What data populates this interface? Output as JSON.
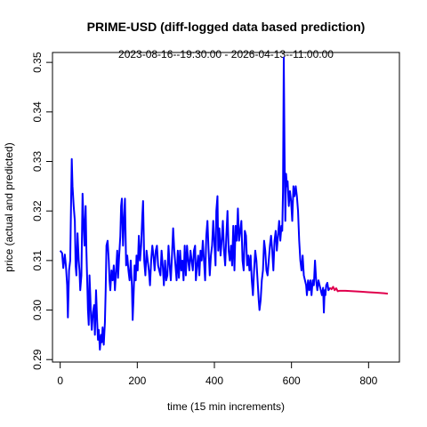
{
  "chart_data": {
    "type": "line",
    "title": "PRIME-USD (diff-logged data based prediction)",
    "subtitle": "2023-08-16--19:30:00  -  2026-04-13--11:00:00",
    "xlabel": "time (15 min increments)",
    "ylabel": "price (actual and predicted)",
    "xlim": [
      -20,
      880
    ],
    "ylim": [
      0.2895,
      0.352
    ],
    "x_ticks": [
      0,
      200,
      400,
      600,
      800
    ],
    "y_ticks": [
      0.29,
      0.3,
      0.31,
      0.32,
      0.33,
      0.34,
      0.35
    ],
    "x_tick_labels": [
      "0",
      "200",
      "400",
      "600",
      "800"
    ],
    "y_tick_labels": [
      "0.29",
      "0.30",
      "0.31",
      "0.32",
      "0.33",
      "0.34",
      "0.35"
    ],
    "grid": false,
    "series": [
      {
        "role": "actual",
        "color": "#0000ff",
        "points": [
          [
            0,
            0.312
          ],
          [
            5,
            0.3115
          ],
          [
            8,
            0.3085
          ],
          [
            12,
            0.3112
          ],
          [
            15,
            0.3088
          ],
          [
            18,
            0.305
          ],
          [
            20,
            0.2985
          ],
          [
            23,
            0.308
          ],
          [
            26,
            0.31
          ],
          [
            28,
            0.3205
          ],
          [
            30,
            0.3305
          ],
          [
            32,
            0.325
          ],
          [
            35,
            0.321
          ],
          [
            38,
            0.318
          ],
          [
            40,
            0.309
          ],
          [
            42,
            0.307
          ],
          [
            45,
            0.3155
          ],
          [
            48,
            0.31
          ],
          [
            50,
            0.308
          ],
          [
            52,
            0.304
          ],
          [
            55,
            0.307
          ],
          [
            58,
            0.3235
          ],
          [
            60,
            0.319
          ],
          [
            63,
            0.313
          ],
          [
            66,
            0.321
          ],
          [
            68,
            0.312
          ],
          [
            70,
            0.306
          ],
          [
            72,
            0.3
          ],
          [
            74,
            0.297
          ],
          [
            76,
            0.307
          ],
          [
            78,
            0.303
          ],
          [
            80,
            0.2985
          ],
          [
            82,
            0.296
          ],
          [
            85,
            0.2995
          ],
          [
            88,
            0.301
          ],
          [
            90,
            0.295
          ],
          [
            93,
            0.304
          ],
          [
            96,
            0.2975
          ],
          [
            98,
            0.294
          ],
          [
            100,
            0.296
          ],
          [
            103,
            0.292
          ],
          [
            106,
            0.295
          ],
          [
            108,
            0.2935
          ],
          [
            110,
            0.2965
          ],
          [
            113,
            0.293
          ],
          [
            116,
            0.2975
          ],
          [
            118,
            0.304
          ],
          [
            120,
            0.313
          ],
          [
            123,
            0.314
          ],
          [
            126,
            0.31
          ],
          [
            128,
            0.306
          ],
          [
            130,
            0.304
          ],
          [
            133,
            0.308
          ],
          [
            136,
            0.306
          ],
          [
            139,
            0.309
          ],
          [
            142,
            0.304
          ],
          [
            145,
            0.308
          ],
          [
            148,
            0.312
          ],
          [
            150,
            0.3065
          ],
          [
            153,
            0.311
          ],
          [
            156,
            0.315
          ],
          [
            158,
            0.321
          ],
          [
            160,
            0.3225
          ],
          [
            163,
            0.313
          ],
          [
            166,
            0.319
          ],
          [
            168,
            0.3225
          ],
          [
            171,
            0.309
          ],
          [
            174,
            0.311
          ],
          [
            177,
            0.308
          ],
          [
            180,
            0.306
          ],
          [
            183,
            0.31
          ],
          [
            186,
            0.305
          ],
          [
            188,
            0.298
          ],
          [
            190,
            0.302
          ],
          [
            193,
            0.309
          ],
          [
            196,
            0.306
          ],
          [
            198,
            0.311
          ],
          [
            201,
            0.308
          ],
          [
            204,
            0.315
          ],
          [
            207,
            0.31
          ],
          [
            210,
            0.313
          ],
          [
            213,
            0.319
          ],
          [
            215,
            0.322
          ],
          [
            218,
            0.31
          ],
          [
            221,
            0.307
          ],
          [
            224,
            0.312
          ],
          [
            227,
            0.31
          ],
          [
            230,
            0.308
          ],
          [
            233,
            0.305
          ],
          [
            236,
            0.31
          ],
          [
            239,
            0.313
          ],
          [
            242,
            0.311
          ],
          [
            245,
            0.308
          ],
          [
            248,
            0.312
          ],
          [
            251,
            0.313
          ],
          [
            254,
            0.309
          ],
          [
            257,
            0.308
          ],
          [
            260,
            0.307
          ],
          [
            263,
            0.312
          ],
          [
            266,
            0.309
          ],
          [
            269,
            0.305
          ],
          [
            272,
            0.31
          ],
          [
            275,
            0.306
          ],
          [
            278,
            0.307
          ],
          [
            281,
            0.313
          ],
          [
            284,
            0.309
          ],
          [
            287,
            0.306
          ],
          [
            290,
            0.311
          ],
          [
            293,
            0.3165
          ],
          [
            296,
            0.312
          ],
          [
            299,
            0.309
          ],
          [
            302,
            0.306
          ],
          [
            305,
            0.312
          ],
          [
            308,
            0.3065
          ],
          [
            311,
            0.312
          ],
          [
            314,
            0.308
          ],
          [
            317,
            0.31
          ],
          [
            320,
            0.306
          ],
          [
            323,
            0.313
          ],
          [
            326,
            0.307
          ],
          [
            329,
            0.313
          ],
          [
            332,
            0.31
          ],
          [
            335,
            0.308
          ],
          [
            338,
            0.312
          ],
          [
            341,
            0.31
          ],
          [
            344,
            0.308
          ],
          [
            347,
            0.312
          ],
          [
            350,
            0.313
          ],
          [
            352,
            0.306
          ],
          [
            355,
            0.309
          ],
          [
            358,
            0.311
          ],
          [
            361,
            0.307
          ],
          [
            364,
            0.312
          ],
          [
            367,
            0.31
          ],
          [
            370,
            0.314
          ],
          [
            373,
            0.31
          ],
          [
            376,
            0.306
          ],
          [
            379,
            0.315
          ],
          [
            382,
            0.318
          ],
          [
            385,
            0.312
          ],
          [
            388,
            0.307
          ],
          [
            391,
            0.311
          ],
          [
            394,
            0.313
          ],
          [
            397,
            0.318
          ],
          [
            400,
            0.3135
          ],
          [
            403,
            0.309
          ],
          [
            405,
            0.32
          ],
          [
            408,
            0.323
          ],
          [
            410,
            0.312
          ],
          [
            413,
            0.3165
          ],
          [
            416,
            0.311
          ],
          [
            419,
            0.314
          ],
          [
            422,
            0.318
          ],
          [
            425,
            0.312
          ],
          [
            428,
            0.309
          ],
          [
            431,
            0.315
          ],
          [
            434,
            0.32
          ],
          [
            437,
            0.312
          ],
          [
            440,
            0.31
          ],
          [
            443,
            0.313
          ],
          [
            446,
            0.309
          ],
          [
            449,
            0.317
          ],
          [
            452,
            0.308
          ],
          [
            455,
            0.317
          ],
          [
            458,
            0.314
          ],
          [
            461,
            0.3205
          ],
          [
            464,
            0.314
          ],
          [
            467,
            0.316
          ],
          [
            470,
            0.318
          ],
          [
            473,
            0.31
          ],
          [
            476,
            0.308
          ],
          [
            479,
            0.316
          ],
          [
            482,
            0.315
          ],
          [
            485,
            0.309
          ],
          [
            488,
            0.311
          ],
          [
            491,
            0.308
          ],
          [
            494,
            0.311
          ],
          [
            497,
            0.306
          ],
          [
            500,
            0.303
          ],
          [
            503,
            0.308
          ],
          [
            506,
            0.312
          ],
          [
            509,
            0.31
          ],
          [
            512,
            0.306
          ],
          [
            515,
            0.302
          ],
          [
            517,
            0.3
          ],
          [
            520,
            0.302
          ],
          [
            523,
            0.306
          ],
          [
            526,
            0.308
          ],
          [
            529,
            0.314
          ],
          [
            532,
            0.312
          ],
          [
            535,
            0.308
          ],
          [
            538,
            0.307
          ],
          [
            541,
            0.31
          ],
          [
            544,
            0.313
          ],
          [
            547,
            0.315
          ],
          [
            550,
            0.312
          ],
          [
            553,
            0.308
          ],
          [
            556,
            0.314
          ],
          [
            559,
            0.316
          ],
          [
            562,
            0.312
          ],
          [
            565,
            0.315
          ],
          [
            568,
            0.318
          ],
          [
            571,
            0.314
          ],
          [
            574,
            0.317
          ],
          [
            576,
            0.316
          ],
          [
            578,
            0.324
          ],
          [
            580,
            0.351
          ],
          [
            582,
            0.332
          ],
          [
            584,
            0.318
          ],
          [
            586,
            0.3275
          ],
          [
            588,
            0.325
          ],
          [
            590,
            0.326
          ],
          [
            593,
            0.321
          ],
          [
            596,
            0.324
          ],
          [
            599,
            0.322
          ],
          [
            602,
            0.318
          ],
          [
            605,
            0.325
          ],
          [
            608,
            0.323
          ],
          [
            611,
            0.325
          ],
          [
            614,
            0.323
          ],
          [
            617,
            0.32
          ],
          [
            620,
            0.314
          ],
          [
            623,
            0.31
          ],
          [
            626,
            0.308
          ],
          [
            629,
            0.311
          ],
          [
            632,
            0.307
          ],
          [
            635,
            0.306
          ],
          [
            638,
            0.305
          ],
          [
            640,
            0.303
          ],
          [
            643,
            0.306
          ],
          [
            646,
            0.304
          ],
          [
            649,
            0.306
          ],
          [
            652,
            0.303
          ],
          [
            655,
            0.306
          ],
          [
            658,
            0.305
          ],
          [
            661,
            0.31
          ],
          [
            664,
            0.306
          ],
          [
            667,
            0.304
          ],
          [
            670,
            0.306
          ],
          [
            673,
            0.305
          ],
          [
            676,
            0.304
          ],
          [
            679,
            0.303
          ],
          [
            682,
            0.3045
          ],
          [
            684,
            0.2995
          ],
          [
            686,
            0.304
          ],
          [
            688,
            0.303
          ],
          [
            690,
            0.305
          ],
          [
            693,
            0.3055
          ],
          [
            696,
            0.304
          ],
          [
            700,
            0.3045
          ]
        ]
      },
      {
        "role": "predicted",
        "color": "#e0004d",
        "points": [
          [
            700,
            0.3045
          ],
          [
            704,
            0.3042
          ],
          [
            708,
            0.3047
          ],
          [
            712,
            0.304
          ],
          [
            716,
            0.3044
          ],
          [
            720,
            0.3038
          ],
          [
            725,
            0.3039
          ],
          [
            730,
            0.3039
          ],
          [
            740,
            0.3039
          ],
          [
            760,
            0.3038
          ],
          [
            780,
            0.3037
          ],
          [
            800,
            0.3036
          ],
          [
            820,
            0.3035
          ],
          [
            840,
            0.3034
          ],
          [
            850,
            0.3033
          ]
        ]
      }
    ]
  }
}
